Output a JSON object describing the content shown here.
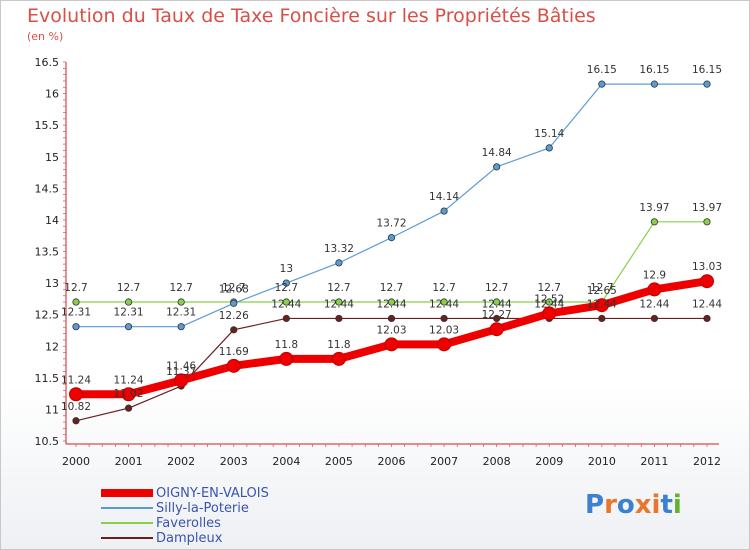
{
  "title": "Evolution du Taux de Taxe Foncière sur les Propriétés Bâties",
  "unit_label": "(en %)",
  "logo_text": "Proxiti",
  "logo_colors": [
    "#3d7fd1",
    "#e8762d",
    "#3d7fd1",
    "#e8762d",
    "#e8762d",
    "#3d7fd1",
    "#62b22f"
  ],
  "chart_data": {
    "type": "line",
    "title": "Evolution du Taux de Taxe Foncière sur les Propriétés Bâties",
    "ylabel": "(en %)",
    "xlabel": "",
    "x": [
      "2000",
      "2001",
      "2002",
      "2003",
      "2004",
      "2005",
      "2006",
      "2007",
      "2008",
      "2009",
      "2010",
      "2011",
      "2012"
    ],
    "ylim": [
      10.5,
      16.5
    ],
    "yticks": [
      "10.5",
      "11",
      "11.5",
      "12",
      "12.5",
      "13",
      "13.5",
      "14",
      "14.5",
      "15",
      "15.5",
      "16",
      "16.5"
    ],
    "legend_position": "bottom-left",
    "series": [
      {
        "name": "Dampleux",
        "color": "#6b1f1f",
        "values": [
          10.82,
          11.02,
          11.37,
          12.26,
          12.44,
          12.44,
          12.44,
          12.44,
          12.44,
          12.44,
          12.44,
          12.44,
          12.44
        ],
        "labels": [
          "10.82",
          "11.02",
          "11.37",
          "12.26",
          "12.44",
          "12.44",
          "12.44",
          "12.44",
          "12.44",
          "12.44",
          "12.44",
          "12.44",
          "12.44"
        ]
      },
      {
        "name": "Faverolles",
        "color": "#88d048",
        "values": [
          12.7,
          12.7,
          12.7,
          12.7,
          12.7,
          12.7,
          12.7,
          12.7,
          12.7,
          12.7,
          12.7,
          13.97,
          13.97
        ],
        "labels": [
          "12.7",
          "12.7",
          "12.7",
          "12.7",
          "12.7",
          "12.7",
          "12.7",
          "12.7",
          "12.7",
          "12.7",
          "12.7",
          "13.97",
          "13.97"
        ]
      },
      {
        "name": "Silly-la-Poterie",
        "color": "#5b9bd5",
        "values": [
          12.31,
          12.31,
          12.31,
          12.68,
          13.0,
          13.32,
          13.72,
          14.14,
          14.84,
          15.14,
          16.15,
          16.15,
          16.15
        ],
        "labels": [
          "12.31",
          "12.31",
          "12.31",
          "12.68",
          "13",
          "13.32",
          "13.72",
          "14.14",
          "14.84",
          "15.14",
          "16.15",
          "16.15",
          "16.15"
        ]
      },
      {
        "name": "OIGNY-EN-VALOIS",
        "color": "#ee0000",
        "values": [
          11.24,
          11.24,
          11.46,
          11.69,
          11.8,
          11.8,
          12.03,
          12.03,
          12.27,
          12.52,
          12.65,
          12.9,
          13.03
        ],
        "labels": [
          "11.24",
          "11.24",
          "11.46",
          "11.69",
          "11.8",
          "11.8",
          "12.03",
          "12.03",
          "12.27",
          "12.52",
          "12.65",
          "12.9",
          "13.03"
        ]
      }
    ],
    "legend": [
      "OIGNY-EN-VALOIS",
      "Silly-la-Poterie",
      "Faverolles",
      "Dampleux"
    ]
  }
}
